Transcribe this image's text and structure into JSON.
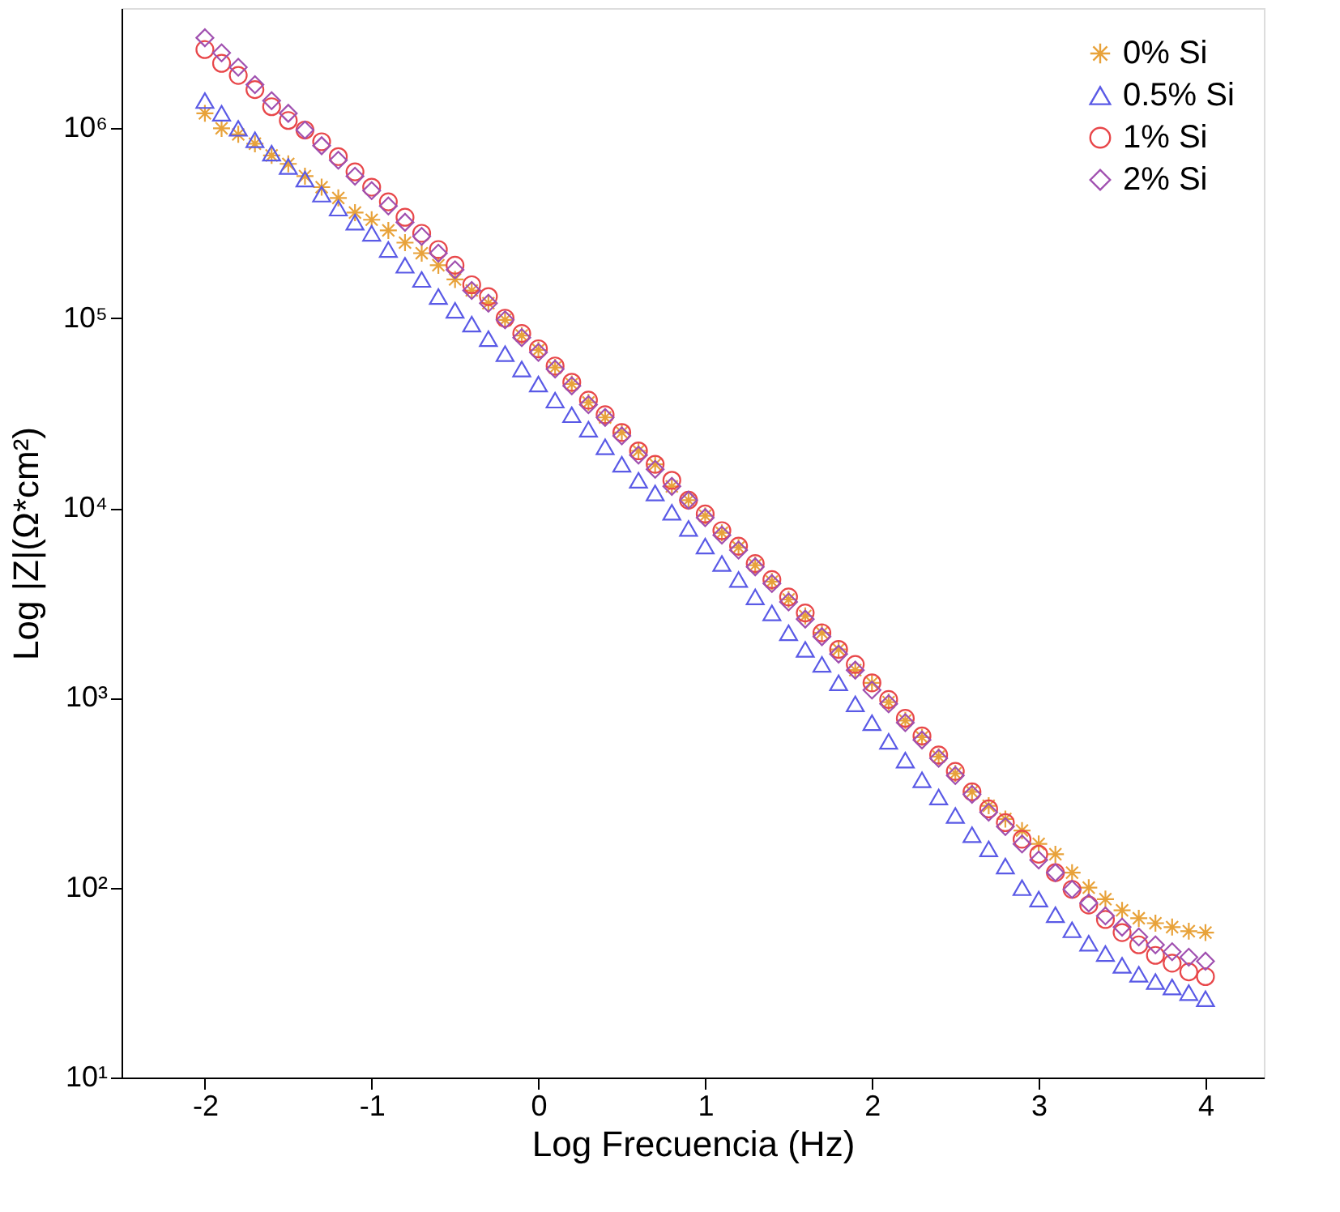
{
  "chart_data": {
    "type": "scatter",
    "xlabel": "Log Frecuencia (Hz)",
    "ylabel": "Log |Z|(Ω*cm²)",
    "x": [
      -2.0,
      -1.9,
      -1.8,
      -1.7,
      -1.6,
      -1.5,
      -1.4,
      -1.3,
      -1.2,
      -1.1,
      -1.0,
      -0.9,
      -0.8,
      -0.7,
      -0.6,
      -0.5,
      -0.4,
      -0.3,
      -0.2,
      -0.1,
      0.0,
      0.1,
      0.2,
      0.3,
      0.4,
      0.5,
      0.6,
      0.7,
      0.8,
      0.9,
      1.0,
      1.1,
      1.2,
      1.3,
      1.4,
      1.5,
      1.6,
      1.7,
      1.8,
      1.9,
      2.0,
      2.1,
      2.2,
      2.3,
      2.4,
      2.5,
      2.6,
      2.7,
      2.8,
      2.9,
      3.0,
      3.1,
      3.2,
      3.3,
      3.4,
      3.5,
      3.6,
      3.7,
      3.8,
      3.9,
      4.0
    ],
    "series": [
      {
        "name": "0% Si",
        "color": "#e8a23a",
        "marker": "cross",
        "values": [
          1200000.0,
          1000000.0,
          930000.0,
          830000.0,
          720000.0,
          650000.0,
          560000.0,
          490000.0,
          430000.0,
          360000.0,
          330000.0,
          290000.0,
          250000.0,
          220000.0,
          190000.0,
          160000.0,
          140000.0,
          120000.0,
          98000.0,
          81000.0,
          68000.0,
          55000.0,
          45000.0,
          36000.0,
          30000.0,
          25000.0,
          20000.0,
          17000.0,
          13000.0,
          11000.0,
          9100.0,
          7400.0,
          6200.0,
          5000.0,
          4100.0,
          3300.0,
          2700.0,
          2200.0,
          1800.0,
          1400.0,
          1200.0,
          950,
          760,
          620,
          490,
          400,
          320,
          270,
          230,
          200,
          170,
          150,
          120,
          100,
          87,
          76,
          69,
          65,
          62,
          59,
          58
        ]
      },
      {
        "name": "0.5% Si",
        "color": "#5a5ae6",
        "marker": "triangle",
        "values": [
          1400000.0,
          1200000.0,
          1000000.0,
          870000.0,
          740000.0,
          630000.0,
          540000.0,
          450000.0,
          380000.0,
          320000.0,
          280000.0,
          230000.0,
          190000.0,
          160000.0,
          130000.0,
          110000.0,
          93000.0,
          78000.0,
          65000.0,
          54000.0,
          45000.0,
          37000.0,
          31000.0,
          26000.0,
          21000.0,
          17000.0,
          14000.0,
          12000.0,
          9500.0,
          7800.0,
          6300.0,
          5100.0,
          4200.0,
          3400.0,
          2800.0,
          2200.0,
          1800.0,
          1500.0,
          1200.0,
          930,
          740,
          590,
          470,
          370,
          300,
          240,
          190,
          160,
          130,
          100,
          87,
          72,
          60,
          51,
          45,
          39,
          35,
          32,
          30,
          28,
          26
        ]
      },
      {
        "name": "1% Si",
        "color": "#e8474a",
        "marker": "circle",
        "values": [
          2600000.0,
          2200000.0,
          1900000.0,
          1600000.0,
          1300000.0,
          1100000.0,
          980000.0,
          850000.0,
          710000.0,
          590000.0,
          490000.0,
          410000.0,
          340000.0,
          280000.0,
          230000.0,
          190000.0,
          150000.0,
          130000.0,
          100000.0,
          83000.0,
          69000.0,
          56000.0,
          46000.0,
          37000.0,
          31000.0,
          25000.0,
          20000.0,
          17000.0,
          14000.0,
          11000.0,
          9300.0,
          7600.0,
          6300.0,
          5100.0,
          4200.0,
          3400.0,
          2800.0,
          2200.0,
          1800.0,
          1500.0,
          1200.0,
          980,
          780,
          630,
          500,
          410,
          320,
          260,
          220,
          180,
          150,
          120,
          98,
          81,
          68,
          58,
          50,
          44,
          40,
          36,
          34
        ]
      },
      {
        "name": "2% Si",
        "color": "#a050b0",
        "marker": "diamond",
        "values": [
          3000000.0,
          2500000.0,
          2100000.0,
          1700000.0,
          1400000.0,
          1200000.0,
          980000.0,
          810000.0,
          680000.0,
          560000.0,
          470000.0,
          390000.0,
          320000.0,
          270000.0,
          220000.0,
          180000.0,
          140000.0,
          120000.0,
          98000.0,
          79000.0,
          66000.0,
          54000.0,
          44000.0,
          35000.0,
          30000.0,
          24000.0,
          19000.0,
          16000.0,
          13000.0,
          11000.0,
          8900.0,
          7200.0,
          6000.0,
          4900.0,
          4000.0,
          3200.0,
          2600.0,
          2100.0,
          1700.0,
          1400.0,
          1100.0,
          930,
          740,
          600,
          480,
          390,
          310,
          250,
          210,
          170,
          140,
          120,
          98,
          83,
          71,
          62,
          55,
          50,
          46,
          43,
          41
        ]
      }
    ],
    "xlim": [
      -2.5,
      4.35
    ],
    "xticks": [
      -2,
      -1,
      0,
      1,
      2,
      3,
      4
    ],
    "log": "y",
    "ylim": [
      10,
      4300000.0
    ],
    "yticks": [
      {
        "value": 10,
        "label": "10¹"
      },
      {
        "value": 100,
        "label": "10²"
      },
      {
        "value": 1000,
        "label": "10³"
      },
      {
        "value": 10000,
        "label": "10⁴"
      },
      {
        "value": 100000,
        "label": "10⁵"
      },
      {
        "value": 1000000,
        "label": "10⁶"
      }
    ],
    "legend": "top right",
    "grid": false
  }
}
